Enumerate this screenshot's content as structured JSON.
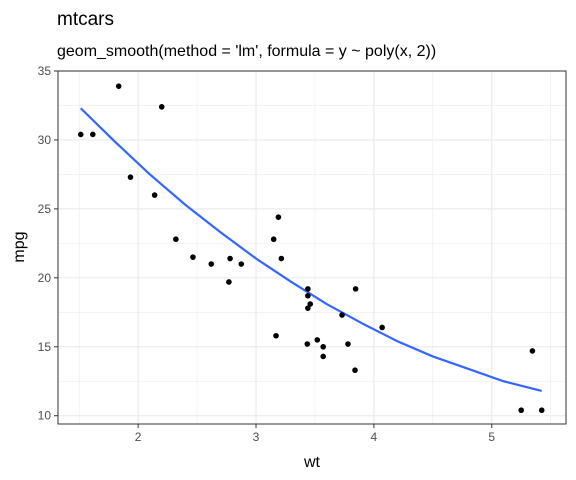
{
  "chart_data": {
    "type": "scatter",
    "title": "mtcars",
    "subtitle": "geom_smooth(method = 'lm', formula = y ~ poly(x, 2))",
    "xlabel": "wt",
    "ylabel": "mpg",
    "xlim": [
      1.32,
      5.63
    ],
    "ylim": [
      9.4,
      35.0
    ],
    "x_ticks": [
      2,
      3,
      4,
      5
    ],
    "y_ticks": [
      10,
      15,
      20,
      25,
      30,
      35
    ],
    "grid": true,
    "legend": "none",
    "colors": {
      "points": "#000000",
      "fit": "#3366FF",
      "grid": "#ebebeb",
      "border": "#333333"
    },
    "points": [
      {
        "x": 2.62,
        "y": 21.0
      },
      {
        "x": 2.875,
        "y": 21.0
      },
      {
        "x": 2.32,
        "y": 22.8
      },
      {
        "x": 3.215,
        "y": 21.4
      },
      {
        "x": 3.44,
        "y": 18.7
      },
      {
        "x": 3.46,
        "y": 18.1
      },
      {
        "x": 3.57,
        "y": 14.3
      },
      {
        "x": 3.19,
        "y": 24.4
      },
      {
        "x": 3.15,
        "y": 22.8
      },
      {
        "x": 3.44,
        "y": 19.2
      },
      {
        "x": 3.44,
        "y": 17.8
      },
      {
        "x": 4.07,
        "y": 16.4
      },
      {
        "x": 3.73,
        "y": 17.3
      },
      {
        "x": 3.78,
        "y": 15.2
      },
      {
        "x": 5.25,
        "y": 10.4
      },
      {
        "x": 5.424,
        "y": 10.4
      },
      {
        "x": 5.345,
        "y": 14.7
      },
      {
        "x": 2.2,
        "y": 32.4
      },
      {
        "x": 1.615,
        "y": 30.4
      },
      {
        "x": 1.835,
        "y": 33.9
      },
      {
        "x": 2.465,
        "y": 21.5
      },
      {
        "x": 3.52,
        "y": 15.5
      },
      {
        "x": 3.435,
        "y": 15.2
      },
      {
        "x": 3.84,
        "y": 13.3
      },
      {
        "x": 3.845,
        "y": 19.2
      },
      {
        "x": 1.935,
        "y": 27.3
      },
      {
        "x": 2.14,
        "y": 26.0
      },
      {
        "x": 1.513,
        "y": 30.4
      },
      {
        "x": 3.17,
        "y": 15.8
      },
      {
        "x": 2.77,
        "y": 19.7
      },
      {
        "x": 3.57,
        "y": 15.0
      },
      {
        "x": 2.78,
        "y": 21.4
      }
    ],
    "fit": {
      "method": "lm",
      "formula": "y ~ poly(x, 2)",
      "x": [
        1.513,
        1.8,
        2.1,
        2.4,
        2.7,
        3.0,
        3.3,
        3.6,
        3.9,
        4.2,
        4.5,
        4.8,
        5.1,
        5.424
      ],
      "y": [
        32.3,
        29.9,
        27.5,
        25.3,
        23.3,
        21.4,
        19.7,
        18.1,
        16.7,
        15.4,
        14.3,
        13.4,
        12.5,
        11.8
      ]
    }
  }
}
